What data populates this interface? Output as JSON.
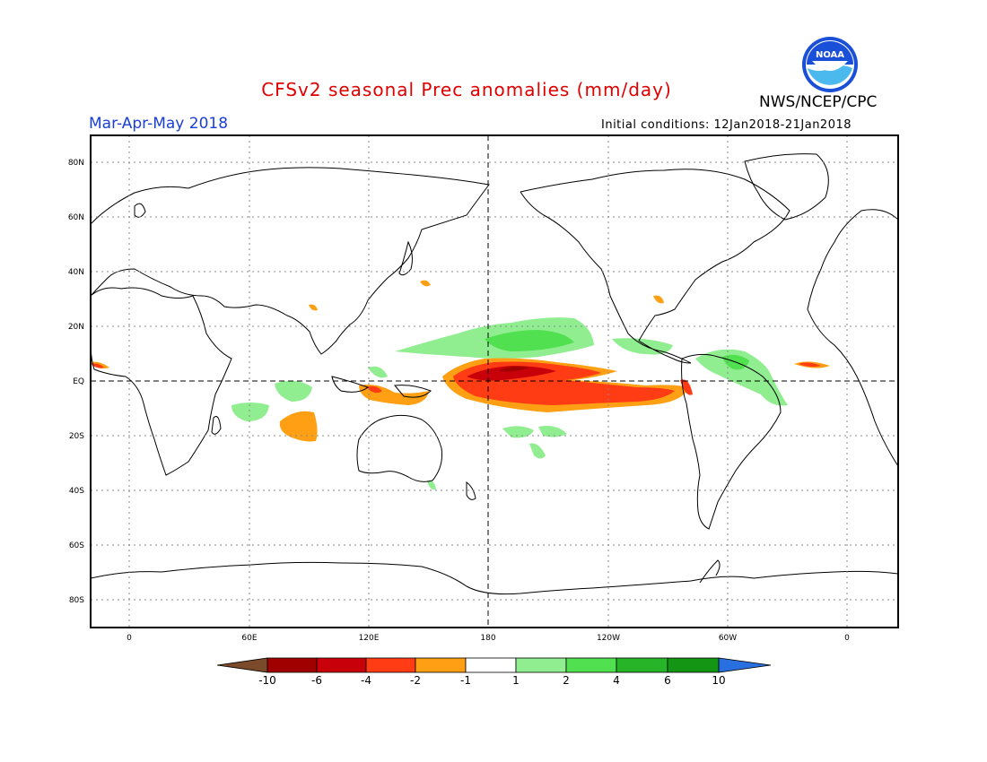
{
  "header": {
    "title": "CFSv2 seasonal Prec anomalies (mm/day)",
    "organization": "NWS/NCEP/CPC",
    "season": "Mar-Apr-May 2018",
    "initial_conditions": "Initial conditions: 12Jan2018-21Jan2018",
    "logo_text": "NOAA"
  },
  "map": {
    "lat_labels": [
      "80N",
      "60N",
      "40N",
      "20N",
      "EQ",
      "20S",
      "40S",
      "60S",
      "80S"
    ],
    "lon_labels": [
      "0",
      "60E",
      "120E",
      "180",
      "120W",
      "60W",
      "0"
    ]
  },
  "colorbar": {
    "labels": [
      "-10",
      "-6",
      "-4",
      "-2",
      "-1",
      "1",
      "2",
      "4",
      "6",
      "10"
    ],
    "colors": [
      "#7a4a2a",
      "#a00000",
      "#c8000a",
      "#ff3c14",
      "#ffa014",
      "#ffffff",
      "#90ee90",
      "#50e050",
      "#28b428",
      "#149614",
      "#2a6fe0"
    ]
  },
  "colors": {
    "wet_light": "#90ee90",
    "wet_medium": "#50e050",
    "dry_light": "#ffa014",
    "dry_medium": "#ff3c14",
    "dry_strong": "#c8000a",
    "dry_extreme": "#a00000"
  }
}
